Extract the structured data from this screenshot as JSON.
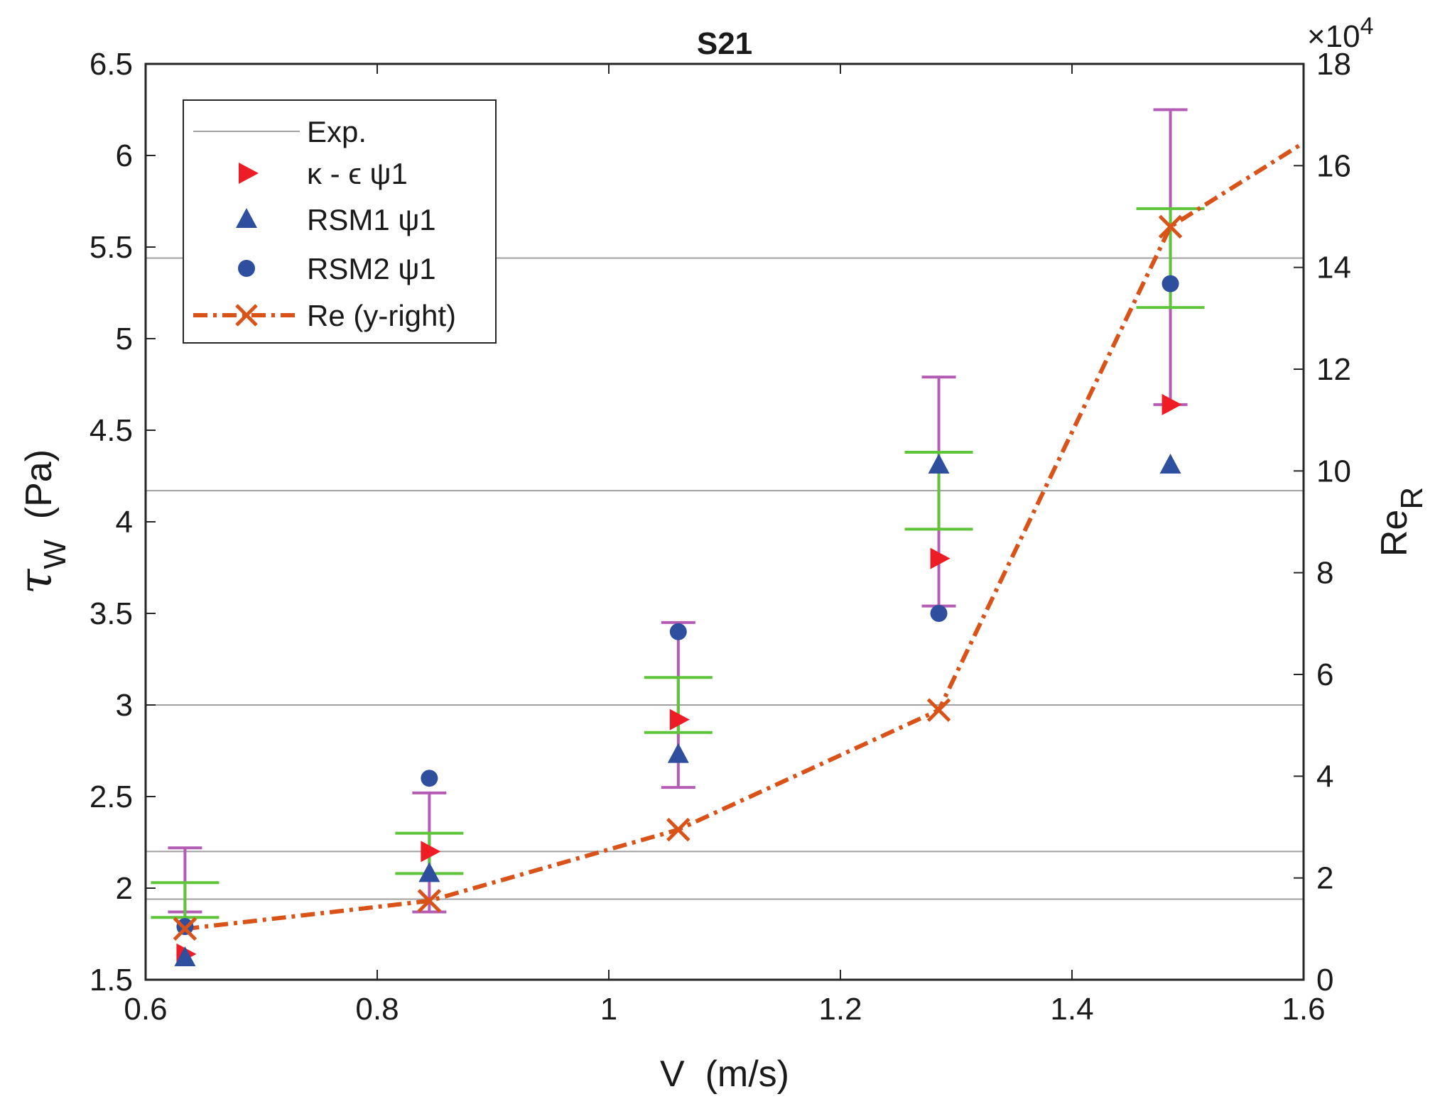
{
  "chart_data": {
    "type": "scatter",
    "title": "S21",
    "xlabel": "V  (m/s)",
    "ylabel": "τW  (Pa)",
    "ylabel_symbol": "τ",
    "ylabel_sub": "W",
    "ylabel_unit": "(Pa)",
    "y2label": "ReR",
    "y2label_main": "Re",
    "y2label_sub": "R",
    "y2_multiplier": "×10",
    "y2_multiplier_exp": "4",
    "xlim": [
      0.6,
      1.6
    ],
    "ylim": [
      1.5,
      6.5
    ],
    "y2lim": [
      0,
      180000
    ],
    "xticks": [
      0.6,
      0.8,
      1.0,
      1.2,
      1.4,
      1.6
    ],
    "xtick_labels": [
      "0.6",
      "0.8",
      "1",
      "1.2",
      "1.4",
      "1.6"
    ],
    "yticks": [
      1.5,
      2,
      2.5,
      3,
      3.5,
      4,
      4.5,
      5,
      5.5,
      6,
      6.5
    ],
    "ytick_labels": [
      "1.5",
      "2",
      "2.5",
      "3",
      "3.5",
      "4",
      "4.5",
      "5",
      "5.5",
      "6",
      "6.5"
    ],
    "y2ticks": [
      0,
      20000,
      40000,
      60000,
      80000,
      100000,
      120000,
      140000,
      160000,
      180000
    ],
    "y2tick_labels": [
      "0",
      "2",
      "4",
      "6",
      "8",
      "10",
      "12",
      "14",
      "16",
      "18"
    ],
    "exp_lines": [
      1.94,
      2.2,
      3.0,
      4.17,
      5.44
    ],
    "error_bars_exp": [
      {
        "x": 0.634,
        "low": 1.87,
        "high": 2.22
      },
      {
        "x": 0.845,
        "low": 1.87,
        "high": 2.52
      },
      {
        "x": 1.06,
        "low": 2.55,
        "high": 3.45
      },
      {
        "x": 1.285,
        "low": 3.54,
        "high": 4.79
      },
      {
        "x": 1.485,
        "low": 4.64,
        "high": 6.25
      }
    ],
    "error_bars_green": [
      {
        "x": 0.634,
        "low": 1.84,
        "high": 2.03
      },
      {
        "x": 0.845,
        "low": 2.08,
        "high": 2.3
      },
      {
        "x": 1.06,
        "low": 2.85,
        "high": 3.15
      },
      {
        "x": 1.285,
        "low": 3.96,
        "high": 4.38
      },
      {
        "x": 1.485,
        "low": 5.17,
        "high": 5.71
      }
    ],
    "series": [
      {
        "name": "Exp.",
        "type": "line",
        "color": "#a0a0a0"
      },
      {
        "name": "κ - ϵ ψ1",
        "type": "scatter",
        "marker": "triangle-right",
        "color": "#ee1c25",
        "x": [
          0.634,
          0.845,
          1.06,
          1.285,
          1.485
        ],
        "y": [
          1.64,
          2.2,
          2.92,
          3.8,
          4.64
        ]
      },
      {
        "name": "RSM1 ψ1",
        "type": "scatter",
        "marker": "triangle-up",
        "color": "#2e4f9e",
        "x": [
          0.634,
          0.845,
          1.06,
          1.285,
          1.485
        ],
        "y": [
          1.62,
          2.08,
          2.73,
          4.31,
          4.31
        ]
      },
      {
        "name": "RSM2 ψ1",
        "type": "scatter",
        "marker": "circle",
        "color": "#2e4f9e",
        "x": [
          0.634,
          0.845,
          1.06,
          1.285,
          1.485
        ],
        "y": [
          1.79,
          2.6,
          3.4,
          3.5,
          5.3
        ]
      },
      {
        "name": "Re (y-right)",
        "type": "line",
        "marker": "x",
        "color": "#d95319",
        "axis": "right",
        "x": [
          0.634,
          0.845,
          1.06,
          1.285,
          1.485,
          1.6
        ],
        "y": [
          10000,
          15500,
          29500,
          53000,
          148000,
          164500
        ]
      }
    ],
    "legend_location": "top-left"
  }
}
